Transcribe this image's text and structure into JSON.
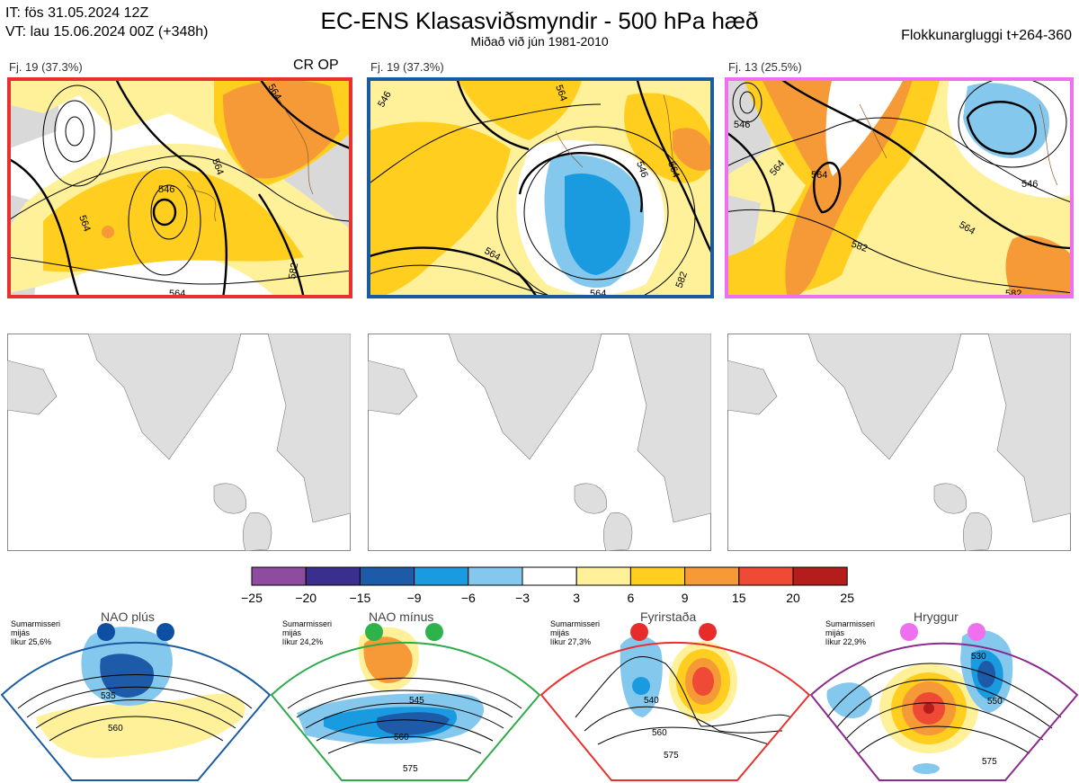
{
  "header": {
    "init_time": "IT: fös 31.05.2024 12Z",
    "valid_time": "VT: lau 15.06.2024 00Z  (+348h)",
    "title": "EC-ENS Klasasviðsmyndir - 500 hPa hæð",
    "subtitle": "Miðað við jún 1981-2010",
    "window": "Flokkunargluggi t+264-360"
  },
  "clusters": [
    {
      "label": "Fj. 19 (37.3%)",
      "tag": "CR OP",
      "frame_color": "#e8312e",
      "contours": [
        "564",
        "546",
        "564",
        "564",
        "564",
        "582"
      ]
    },
    {
      "label": "Fj. 19 (37.3%)",
      "tag": "",
      "frame_color": "#1a5ba0",
      "contours": [
        "546",
        "564",
        "546",
        "564",
        "564",
        "564",
        "582"
      ]
    },
    {
      "label": "Fj. 13 (25.5%)",
      "tag": "",
      "frame_color": "#ee70ee",
      "contours": [
        "546",
        "564",
        "564",
        "582",
        "564",
        "546",
        "582"
      ]
    }
  ],
  "colorbar": {
    "labels": [
      "−25",
      "−20",
      "−15",
      "−9",
      "−6",
      "−3",
      "3",
      "6",
      "9",
      "15",
      "20",
      "25"
    ],
    "colors": [
      "#8e4c9e",
      "#3a2f8f",
      "#1d5aa8",
      "#1a9be0",
      "#85c8ee",
      "#ffffff",
      "#fff19a",
      "#ffce1f",
      "#f69a37",
      "#ee4a35",
      "#b51d1d"
    ]
  },
  "regimes": [
    {
      "name": "NAO plús",
      "season": "Sumarmisseri",
      "line2": "mijás",
      "prob": "líkur 25,6%",
      "dot_color": "#0d4fa3",
      "frame_color": "#1a5ba0",
      "contours": [
        "535",
        "560"
      ]
    },
    {
      "name": "NAO mínus",
      "season": "Sumarmisseri",
      "line2": "mijás",
      "prob": "líkur 24,2%",
      "dot_color": "#2db34a",
      "frame_color": "#2eaa4a",
      "contours": [
        "545",
        "560",
        "575"
      ]
    },
    {
      "name": "Fyrirstaða",
      "season": "Sumarmisseri",
      "line2": "mijás",
      "prob": "líkur 27,3%",
      "dot_color": "#e82c2c",
      "frame_color": "#e8312e",
      "contours": [
        "540",
        "560",
        "575"
      ]
    },
    {
      "name": "Hryggur",
      "season": "Sumarmisseri",
      "line2": "mijás",
      "prob": "líkur 22,9%",
      "dot_color": "#ee70ee",
      "frame_color": "#8b2a8e",
      "contours": [
        "530",
        "550",
        "575"
      ]
    }
  ]
}
